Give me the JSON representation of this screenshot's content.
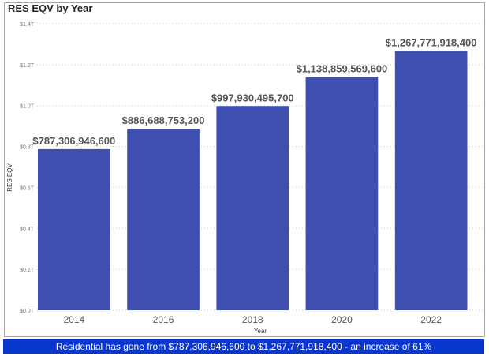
{
  "chart_data": {
    "type": "bar",
    "title": "RES EQV by Year",
    "xlabel": "Year",
    "ylabel": "RES EQV",
    "categories": [
      "2014",
      "2016",
      "2018",
      "2020",
      "2022"
    ],
    "values": [
      787306946600,
      886688753200,
      997930495700,
      1138859569600,
      1267771918400
    ],
    "data_labels": [
      "$787,306,946,600",
      "$886,688,753,200",
      "$997,930,495,700",
      "$1,138,859,569,600",
      "$1,267,771,918,400"
    ],
    "ylim": [
      0,
      1400000000000
    ],
    "yticks": [
      "$0.0T",
      "$0.2T",
      "$0.4T",
      "$0.6T",
      "$0.8T",
      "$1.0T",
      "$1.2T",
      "$1.4T"
    ],
    "grid": true,
    "bar_color": "#3f4fb0"
  },
  "banner": {
    "text": "Residential has gone from $787,306,946,600 to $1,267,771,918,400 - an increase of 61%",
    "color": "#0a36d0"
  }
}
